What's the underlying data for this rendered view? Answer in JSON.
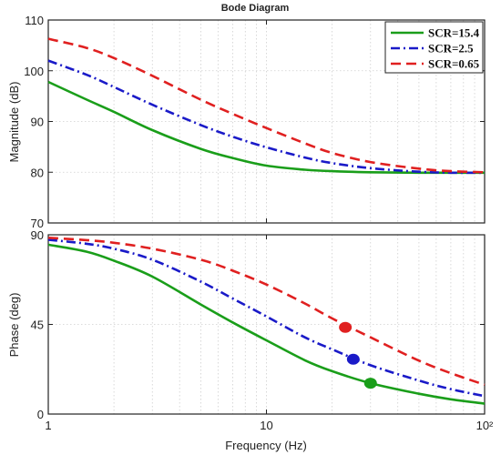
{
  "chart_data": {
    "type": "line",
    "title": "Bode Diagram",
    "xlabel": "Frequency (Hz)",
    "xscale": "log",
    "xlim": [
      1,
      100
    ],
    "x_ticks": [
      1,
      10,
      100
    ],
    "x_tick_labels": [
      "1",
      "10",
      "10²"
    ],
    "grid": true,
    "legend_position": "top-right",
    "colors": {
      "SCR=15.4": "#1a9e1a",
      "SCR=2.5": "#1a1ac8",
      "SCR=0.65": "#e02020"
    },
    "panels": [
      {
        "name": "magnitude",
        "ylabel": "Magnitude (dB)",
        "ylim": [
          70,
          110
        ],
        "y_ticks": [
          70,
          80,
          90,
          100,
          110
        ],
        "x": [
          1,
          1.5,
          2,
          3,
          5,
          7,
          10,
          15,
          20,
          30,
          50,
          70,
          100
        ],
        "series": [
          {
            "name": "SCR=15.4",
            "values": [
              97.8,
              94.3,
              91.9,
              88.3,
              84.6,
              82.8,
              81.3,
              80.5,
              80.2,
              80.0,
              79.9,
              79.9,
              79.9
            ]
          },
          {
            "name": "SCR=2.5",
            "values": [
              102.0,
              99.2,
              96.8,
              93.3,
              89.3,
              87.0,
              84.9,
              82.9,
              81.8,
              80.8,
              80.1,
              79.9,
              79.9
            ]
          },
          {
            "name": "SCR=0.65",
            "values": [
              106.3,
              104.5,
              102.5,
              99.0,
              94.3,
              91.5,
              88.7,
              85.7,
              83.8,
              82.0,
              80.7,
              80.2,
              80.0
            ]
          }
        ]
      },
      {
        "name": "phase",
        "ylabel": "Phase (deg)",
        "ylim": [
          0,
          90
        ],
        "y_ticks": [
          0,
          45,
          90
        ],
        "x": [
          1,
          1.5,
          2,
          3,
          5,
          7,
          10,
          15,
          20,
          30,
          50,
          70,
          100
        ],
        "series": [
          {
            "name": "SCR=15.4",
            "values": [
              85,
              81.5,
              77,
              69,
              55,
              46,
              37,
              27,
              21.5,
              15.5,
              10.2,
              7.4,
              5.2
            ],
            "marker": {
              "x": 30,
              "y": 15.5
            }
          },
          {
            "name": "SCR=2.5",
            "values": [
              87.5,
              85.5,
              83,
              77.5,
              66.5,
              58,
              49,
              38.5,
              32.5,
              24.5,
              16.8,
              12.5,
              9.0
            ],
            "marker": {
              "x": 25,
              "y": 27.5
            }
          },
          {
            "name": "SCR=0.65",
            "values": [
              88.5,
              87.3,
              86,
              83,
              77.5,
              72,
              65,
              55.5,
              48,
              38.5,
              26.8,
              20.5,
              14.7
            ],
            "marker": {
              "x": 23,
              "y": 43.5
            }
          }
        ]
      }
    ],
    "legend": [
      "SCR=15.4",
      "SCR=2.5",
      "SCR=0.65"
    ]
  }
}
